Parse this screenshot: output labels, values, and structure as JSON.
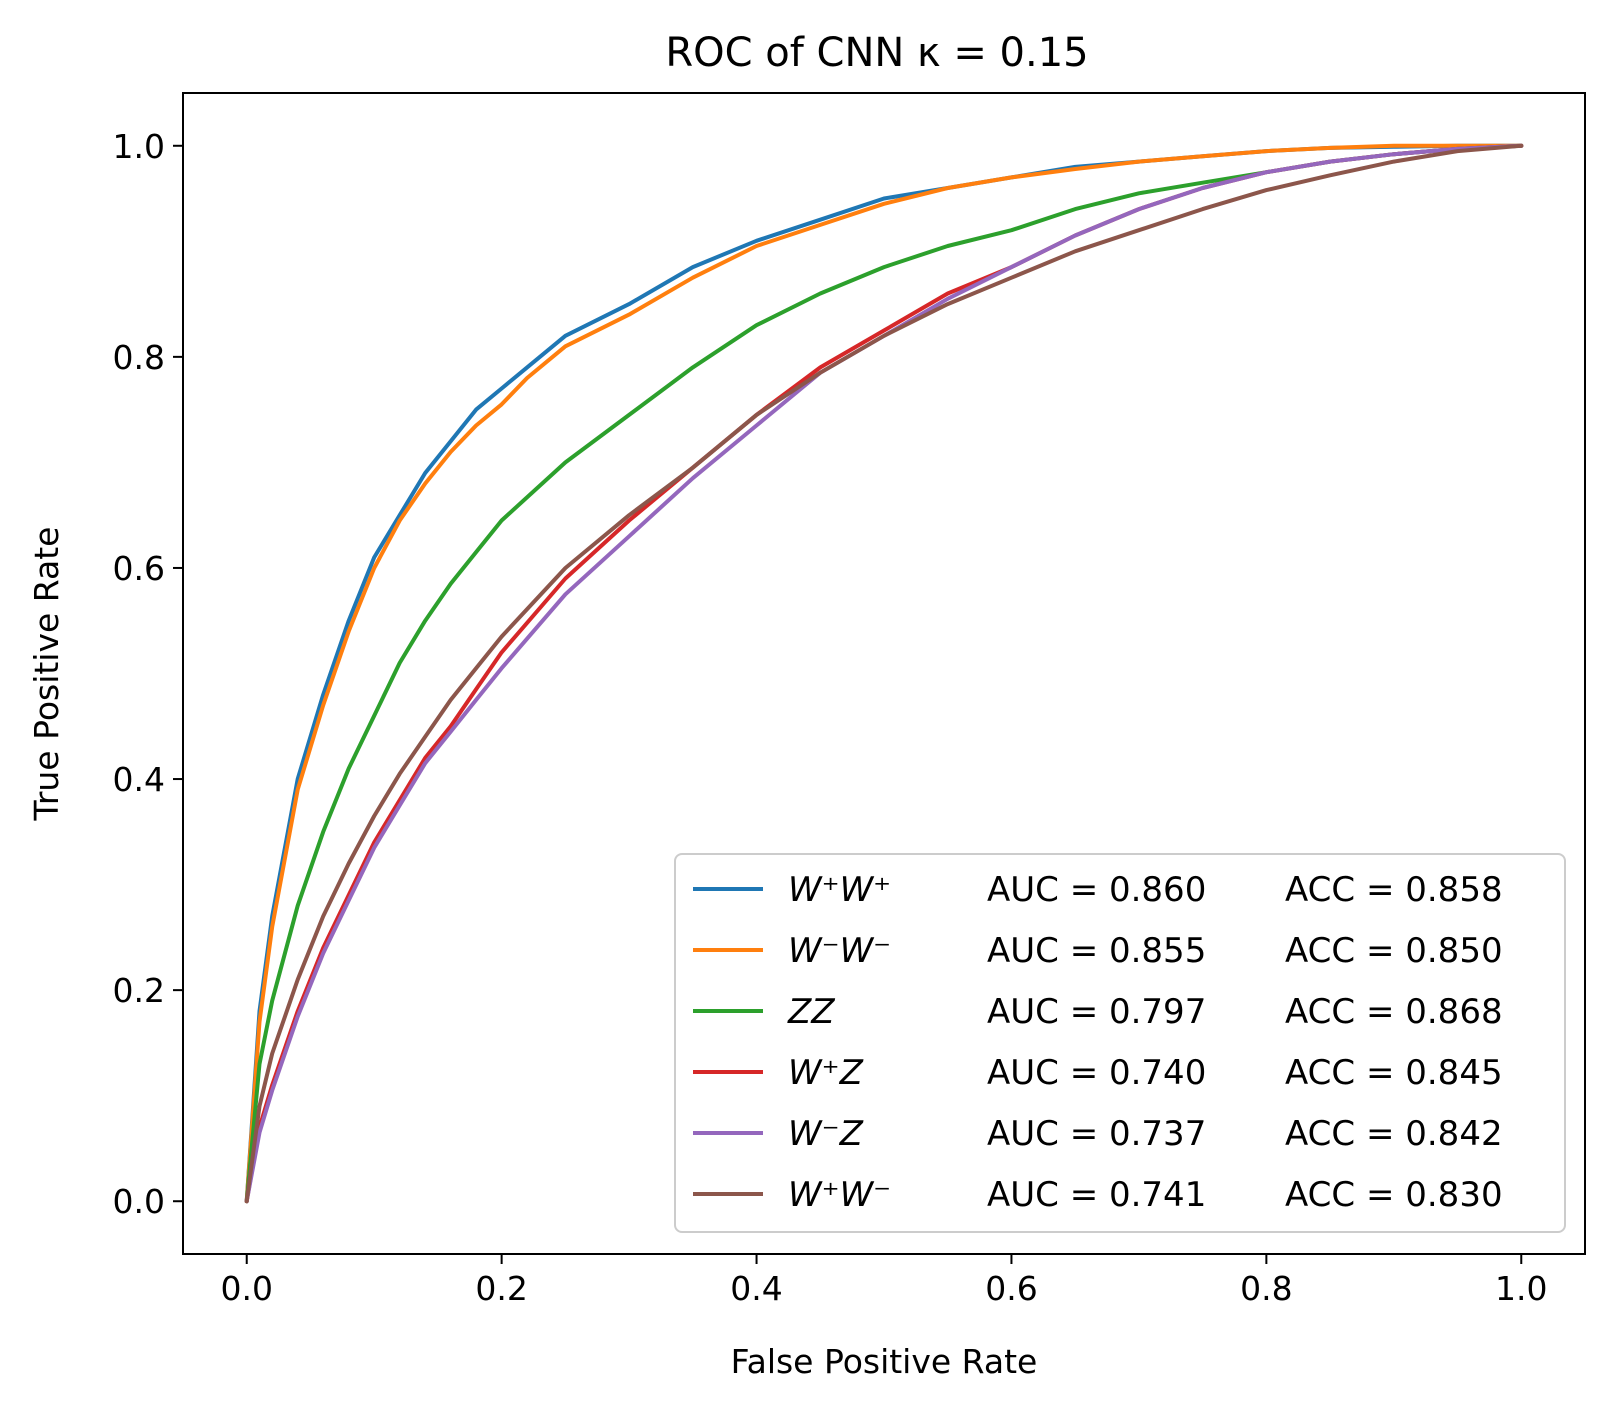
{
  "chart_data": {
    "type": "line",
    "title": "ROC of CNN κ = 0.15",
    "xlabel": "False Positive Rate",
    "ylabel": "True Positive Rate",
    "xlim": [
      -0.05,
      1.05
    ],
    "ylim": [
      -0.05,
      1.05
    ],
    "xticks": [
      "0.0",
      "0.2",
      "0.4",
      "0.6",
      "0.8",
      "1.0"
    ],
    "yticks": [
      "0.0",
      "0.2",
      "0.4",
      "0.6",
      "0.8",
      "1.0"
    ],
    "grid": false,
    "legend_position": "lower right",
    "series": [
      {
        "name": "W⁺W⁺",
        "auc": "AUC = 0.860",
        "acc": "ACC = 0.858",
        "color": "#1f77b4",
        "x": [
          0,
          0.01,
          0.02,
          0.04,
          0.06,
          0.08,
          0.1,
          0.12,
          0.14,
          0.16,
          0.18,
          0.2,
          0.22,
          0.25,
          0.3,
          0.35,
          0.4,
          0.45,
          0.5,
          0.55,
          0.6,
          0.65,
          0.7,
          0.75,
          0.8,
          0.85,
          0.9,
          0.95,
          1.0
        ],
        "y": [
          0,
          0.18,
          0.27,
          0.4,
          0.48,
          0.55,
          0.61,
          0.65,
          0.69,
          0.72,
          0.75,
          0.77,
          0.79,
          0.82,
          0.85,
          0.885,
          0.91,
          0.93,
          0.95,
          0.96,
          0.97,
          0.98,
          0.985,
          0.99,
          0.995,
          0.998,
          0.999,
          1.0,
          1.0
        ]
      },
      {
        "name": "W⁻W⁻",
        "auc": "AUC = 0.855",
        "acc": "ACC = 0.850",
        "color": "#ff7f0e",
        "x": [
          0,
          0.01,
          0.02,
          0.04,
          0.06,
          0.08,
          0.1,
          0.12,
          0.14,
          0.16,
          0.18,
          0.2,
          0.22,
          0.25,
          0.3,
          0.35,
          0.4,
          0.45,
          0.5,
          0.55,
          0.6,
          0.65,
          0.7,
          0.75,
          0.8,
          0.85,
          0.9,
          0.95,
          1.0
        ],
        "y": [
          0,
          0.17,
          0.26,
          0.39,
          0.47,
          0.54,
          0.6,
          0.645,
          0.68,
          0.71,
          0.735,
          0.755,
          0.78,
          0.81,
          0.84,
          0.875,
          0.905,
          0.925,
          0.945,
          0.96,
          0.97,
          0.978,
          0.985,
          0.99,
          0.995,
          0.998,
          1.0,
          1.0,
          1.0
        ]
      },
      {
        "name": "ZZ",
        "auc": "AUC = 0.797",
        "acc": "ACC = 0.868",
        "color": "#2ca02c",
        "x": [
          0,
          0.01,
          0.02,
          0.04,
          0.06,
          0.08,
          0.1,
          0.12,
          0.14,
          0.16,
          0.18,
          0.2,
          0.25,
          0.3,
          0.35,
          0.4,
          0.45,
          0.5,
          0.55,
          0.6,
          0.65,
          0.7,
          0.75,
          0.8,
          0.85,
          0.9,
          0.95,
          1.0
        ],
        "y": [
          0,
          0.13,
          0.19,
          0.28,
          0.35,
          0.41,
          0.46,
          0.51,
          0.55,
          0.585,
          0.615,
          0.645,
          0.7,
          0.745,
          0.79,
          0.83,
          0.86,
          0.885,
          0.905,
          0.92,
          0.94,
          0.955,
          0.965,
          0.975,
          0.985,
          0.992,
          0.997,
          1.0
        ]
      },
      {
        "name": "W⁺Z",
        "auc": "AUC = 0.740",
        "acc": "ACC = 0.845",
        "color": "#d62728",
        "x": [
          0,
          0.01,
          0.02,
          0.04,
          0.06,
          0.08,
          0.1,
          0.12,
          0.14,
          0.16,
          0.18,
          0.2,
          0.25,
          0.3,
          0.35,
          0.4,
          0.45,
          0.5,
          0.55,
          0.6,
          0.65,
          0.7,
          0.75,
          0.8,
          0.85,
          0.9,
          0.95,
          1.0
        ],
        "y": [
          0,
          0.07,
          0.11,
          0.18,
          0.24,
          0.29,
          0.34,
          0.38,
          0.42,
          0.45,
          0.485,
          0.52,
          0.59,
          0.645,
          0.695,
          0.745,
          0.79,
          0.825,
          0.86,
          0.885,
          0.915,
          0.94,
          0.96,
          0.975,
          0.985,
          0.992,
          0.997,
          1.0
        ]
      },
      {
        "name": "W⁻Z",
        "auc": "AUC = 0.737",
        "acc": "ACC = 0.842",
        "color": "#9467bd",
        "x": [
          0,
          0.01,
          0.02,
          0.04,
          0.06,
          0.08,
          0.1,
          0.12,
          0.14,
          0.16,
          0.18,
          0.2,
          0.25,
          0.3,
          0.35,
          0.4,
          0.45,
          0.5,
          0.55,
          0.6,
          0.65,
          0.7,
          0.75,
          0.8,
          0.85,
          0.9,
          0.95,
          1.0
        ],
        "y": [
          0,
          0.065,
          0.105,
          0.175,
          0.235,
          0.285,
          0.335,
          0.375,
          0.415,
          0.445,
          0.475,
          0.505,
          0.575,
          0.63,
          0.685,
          0.735,
          0.785,
          0.82,
          0.855,
          0.885,
          0.915,
          0.94,
          0.96,
          0.975,
          0.985,
          0.992,
          0.997,
          1.0
        ]
      },
      {
        "name": "W⁺W⁻",
        "auc": "AUC = 0.741",
        "acc": "ACC = 0.830",
        "color": "#8c564b",
        "x": [
          0,
          0.01,
          0.02,
          0.04,
          0.06,
          0.08,
          0.1,
          0.12,
          0.14,
          0.16,
          0.18,
          0.2,
          0.25,
          0.3,
          0.35,
          0.4,
          0.45,
          0.5,
          0.55,
          0.6,
          0.65,
          0.7,
          0.75,
          0.8,
          0.85,
          0.9,
          0.95,
          1.0
        ],
        "y": [
          0,
          0.09,
          0.14,
          0.21,
          0.27,
          0.32,
          0.365,
          0.405,
          0.44,
          0.475,
          0.505,
          0.535,
          0.6,
          0.65,
          0.695,
          0.745,
          0.785,
          0.82,
          0.85,
          0.875,
          0.9,
          0.92,
          0.94,
          0.958,
          0.972,
          0.985,
          0.995,
          1.0
        ]
      }
    ]
  }
}
